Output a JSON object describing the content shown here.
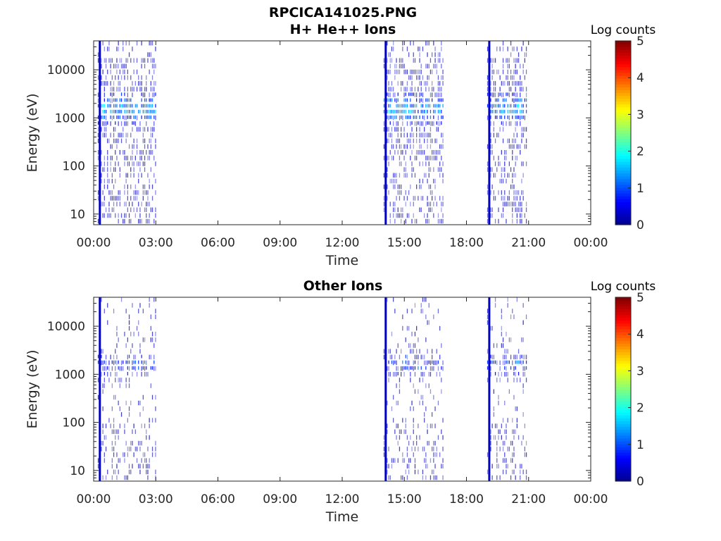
{
  "figure_title": "RPCICA141025.PNG",
  "colors": {
    "colormap": [
      "#00008f",
      "#0000ff",
      "#0080ff",
      "#00ffff",
      "#80ff80",
      "#ffff00",
      "#ff8000",
      "#ff0000",
      "#800000"
    ],
    "axis": "#262626"
  },
  "chart_data": [
    {
      "type": "heatmap",
      "title": "H+ He++ Ions",
      "xlabel": "Time",
      "ylabel": "Energy (eV)",
      "x_ticks": [
        "00:00",
        "03:00",
        "06:00",
        "09:00",
        "12:00",
        "15:00",
        "18:00",
        "21:00",
        "00:00"
      ],
      "x_range_hours": [
        0,
        24
      ],
      "y_scale": "log",
      "y_ticks": [
        "10",
        "100",
        "1000",
        "10000"
      ],
      "y_range": [
        6,
        40000
      ],
      "colorbar": {
        "label": "Log counts",
        "range": [
          0,
          5
        ],
        "ticks": [
          "0",
          "1",
          "2",
          "3",
          "4",
          "5"
        ]
      },
      "data_intervals_hours": [
        [
          0.2,
          3.0
        ],
        [
          14.0,
          16.9
        ],
        [
          19.0,
          20.9
        ]
      ],
      "intense_lines_hours": [
        0.3,
        14.1,
        19.1
      ],
      "peak_energy_eV": 1500,
      "peak_log_counts": 1.8
    },
    {
      "type": "heatmap",
      "title": "Other Ions",
      "xlabel": "Time",
      "ylabel": "Energy (eV)",
      "x_ticks": [
        "00:00",
        "03:00",
        "06:00",
        "09:00",
        "12:00",
        "15:00",
        "18:00",
        "21:00",
        "00:00"
      ],
      "x_range_hours": [
        0,
        24
      ],
      "y_scale": "log",
      "y_ticks": [
        "10",
        "100",
        "1000",
        "10000"
      ],
      "y_range": [
        6,
        40000
      ],
      "colorbar": {
        "label": "Log counts",
        "range": [
          0,
          5
        ],
        "ticks": [
          "0",
          "1",
          "2",
          "3",
          "4",
          "5"
        ]
      },
      "data_intervals_hours": [
        [
          0.2,
          3.0
        ],
        [
          14.0,
          16.9
        ],
        [
          19.0,
          20.9
        ]
      ],
      "intense_lines_hours": [
        0.3,
        14.1,
        19.1
      ],
      "peak_energy_eV": 1500,
      "peak_log_counts": 1.2
    }
  ]
}
